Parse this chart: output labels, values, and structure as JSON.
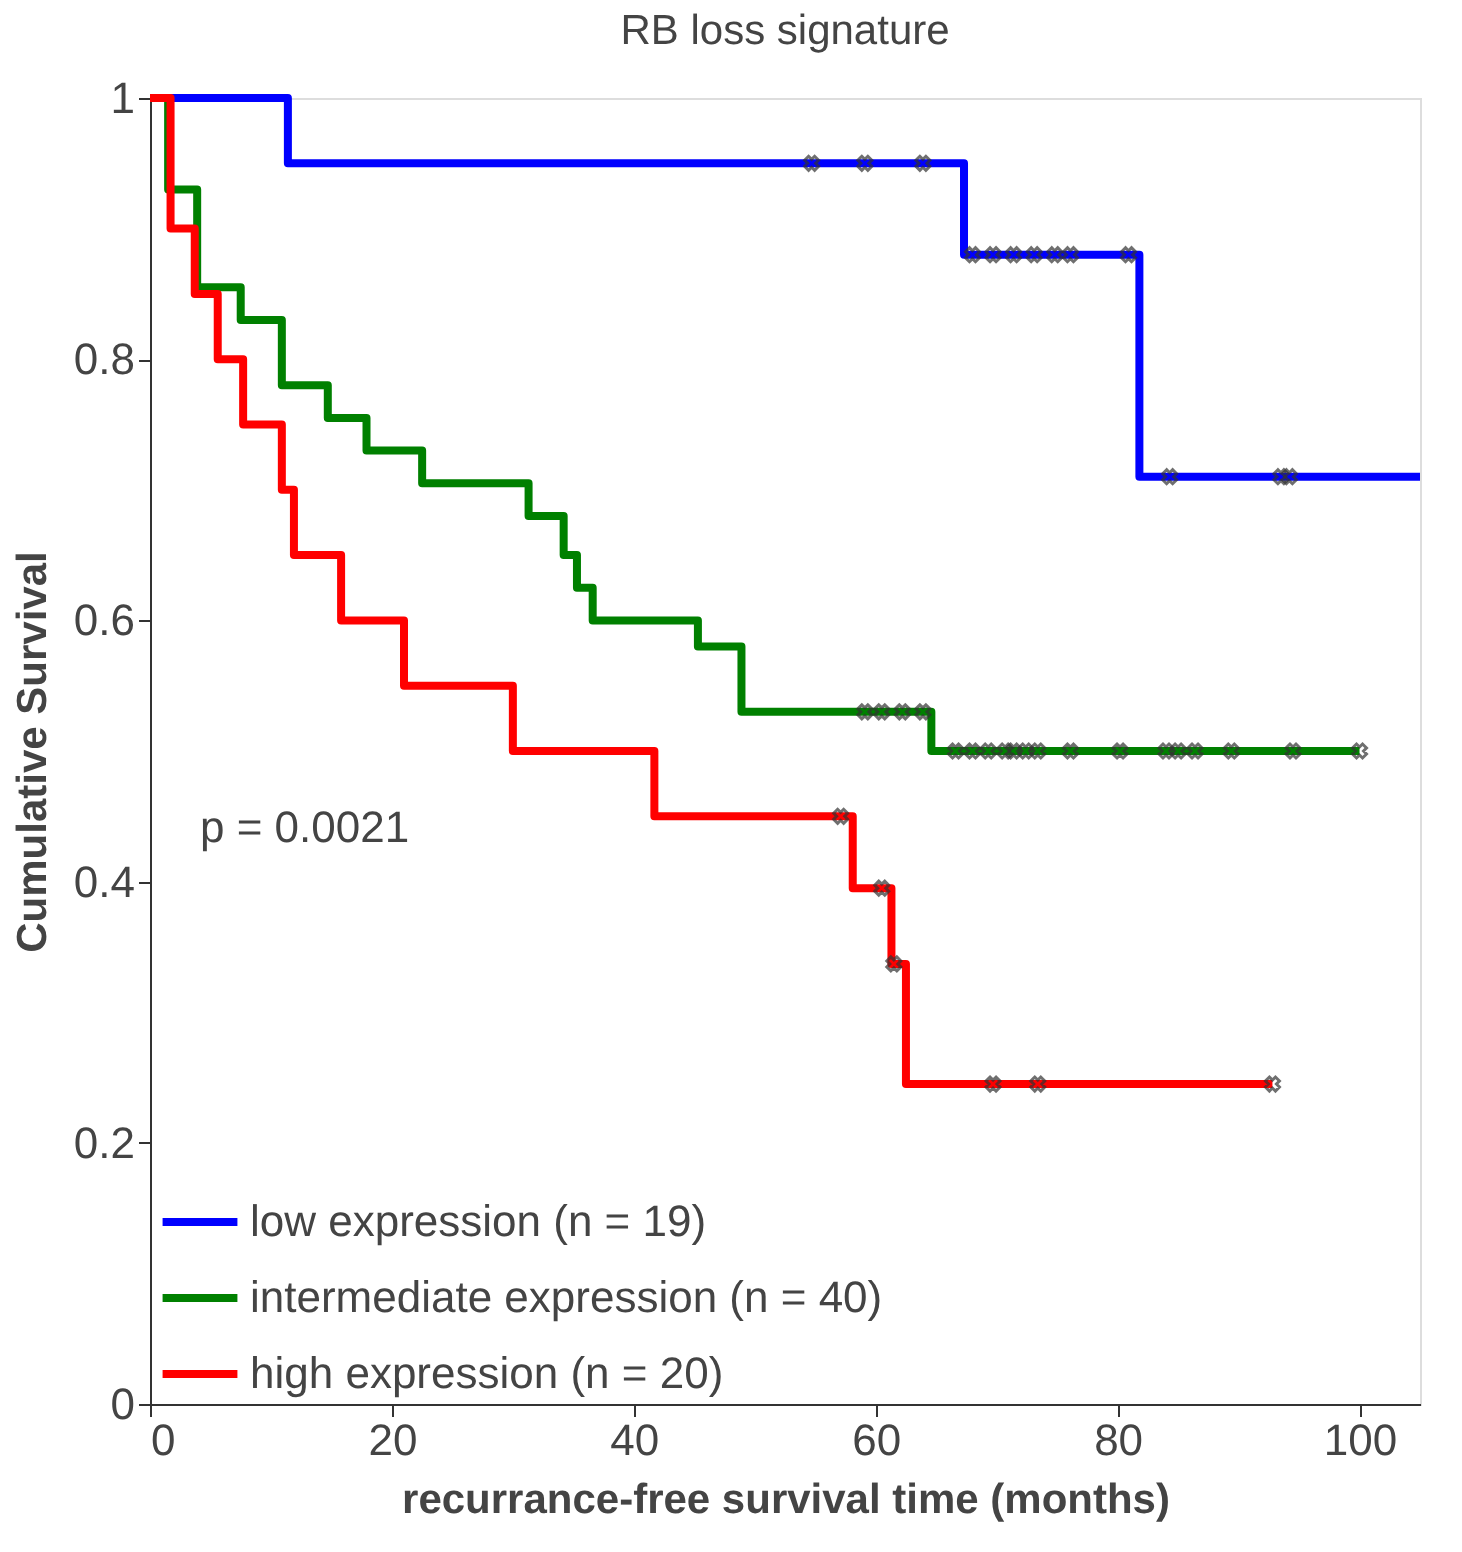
{
  "chart_data": {
    "type": "step",
    "title": "RB loss signature",
    "xlabel": "recurrance-free survival time (months)",
    "ylabel": "Cumulative Survival",
    "xlim": [
      0,
      105
    ],
    "ylim": [
      0,
      1
    ],
    "xticks": [
      0,
      20,
      40,
      60,
      80,
      100
    ],
    "yticks": [
      0,
      0.2,
      0.4,
      0.6,
      0.8,
      1
    ],
    "grid": false,
    "legend": "bottom left",
    "annotations": [
      "p = 0.0021"
    ],
    "series": [
      {
        "name": "low expression (n = 19)",
        "color": "#0000ff",
        "x": [
          0,
          11.4,
          67.3,
          81.8,
          105
        ],
        "values": [
          1,
          0.95,
          0.88,
          0.71,
          0.71
        ]
      },
      {
        "name": "intermediate expression (n = 40)",
        "color": "#008000",
        "x": [
          0,
          1.5,
          3.9,
          7.5,
          10.9,
          14.7,
          17.9,
          22.5,
          31.3,
          34.2,
          35.3,
          36.6,
          45.3,
          48.9,
          64.6,
          100
        ],
        "values": [
          1,
          0.93,
          0.855,
          0.83,
          0.78,
          0.755,
          0.73,
          0.705,
          0.68,
          0.65,
          0.625,
          0.6,
          0.58,
          0.53,
          0.5,
          0.5
        ]
      },
      {
        "name": "high expression (n = 20)",
        "color": "#ff0000",
        "x": [
          0,
          1.7,
          3.7,
          5.6,
          7.7,
          10.9,
          11.9,
          15.8,
          21,
          30,
          41.7,
          58.1,
          61.3,
          62.5,
          92.8
        ],
        "values": [
          1,
          0.9,
          0.85,
          0.8,
          0.75,
          0.7,
          0.65,
          0.6,
          0.55,
          0.5,
          0.45,
          0.395,
          0.337,
          0.245,
          0.245
        ]
      },
      {
        "type": "scatter",
        "color": "#333333",
        "marker": "cross",
        "x": [
          54.7,
          59.1,
          63.9,
          68,
          69.7,
          71.4,
          73.1,
          74.8,
          76.1,
          80.9,
          84.3,
          93.5,
          94.2
        ],
        "values": [
          0.95,
          0.95,
          0.95,
          0.88,
          0.88,
          0.88,
          0.88,
          0.88,
          0.88,
          0.88,
          0.71,
          0.71,
          0.71
        ]
      },
      {
        "type": "scatter",
        "color": "#333333",
        "marker": "cross",
        "x": [
          59.1,
          60.5,
          62.2,
          63.9,
          66.6,
          68,
          69.3,
          70.7,
          71.4,
          72.4,
          73.4,
          76.1,
          80.2,
          84,
          85,
          86.4,
          89.4,
          94.5,
          100
        ],
        "values": [
          0.53,
          0.53,
          0.53,
          0.53,
          0.5,
          0.5,
          0.5,
          0.5,
          0.5,
          0.5,
          0.5,
          0.5,
          0.5,
          0.5,
          0.5,
          0.5,
          0.5,
          0.5,
          0.5
        ]
      },
      {
        "type": "scatter",
        "color": "#333333",
        "marker": "cross",
        "x": [
          57.1,
          60.5,
          61.5,
          69.7,
          73.4,
          92.8
        ],
        "values": [
          0.45,
          0.395,
          0.337,
          0.245,
          0.245,
          0.245
        ]
      }
    ]
  }
}
